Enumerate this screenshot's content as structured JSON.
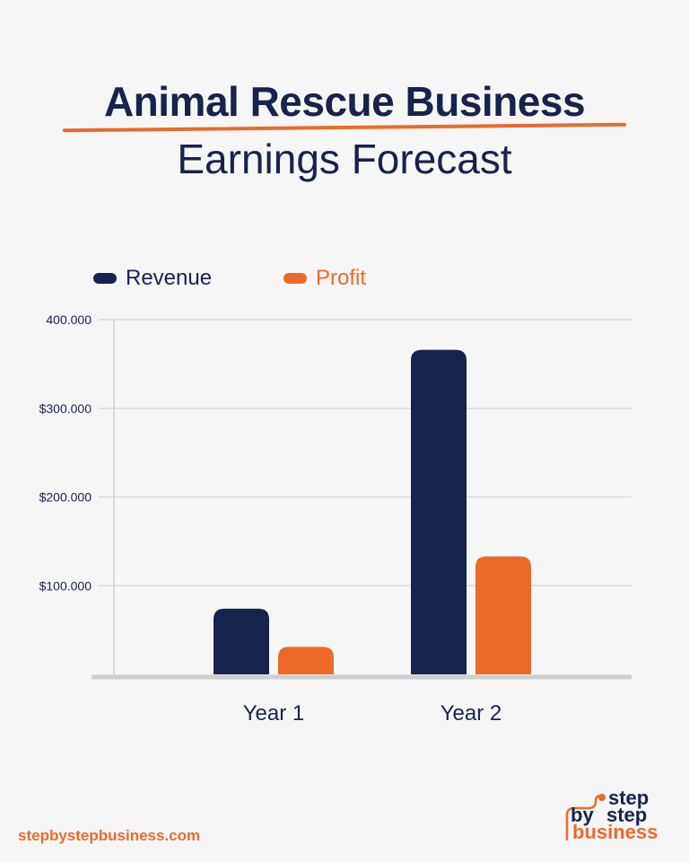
{
  "header": {
    "title_line1": "Animal Rescue Business",
    "title_line2": "Earnings Forecast"
  },
  "colors": {
    "revenue": "#16234d",
    "profit": "#eb6a2a",
    "grid": "#d9d9d9",
    "text": "#16234d"
  },
  "chart_data": {
    "type": "bar",
    "categories": [
      "Year 1",
      "Year 2"
    ],
    "series": [
      {
        "name": "Revenue",
        "values": [
          74000,
          366000
        ]
      },
      {
        "name": "Profit",
        "values": [
          31000,
          133000
        ]
      }
    ],
    "yticks": [
      {
        "value": 100000,
        "label": "$100.000"
      },
      {
        "value": 200000,
        "label": "$200.000"
      },
      {
        "value": 300000,
        "label": "$300.000"
      },
      {
        "value": 400000,
        "label": "400.000"
      }
    ],
    "ylim": [
      0,
      400000
    ],
    "title": "",
    "xlabel": "",
    "ylabel": "",
    "grid": true,
    "legend_position": "top-left"
  },
  "footer": {
    "url": "stepbystepbusiness.com",
    "logo_word_step": "step",
    "logo_word_by": "by",
    "logo_word_business": "business"
  }
}
